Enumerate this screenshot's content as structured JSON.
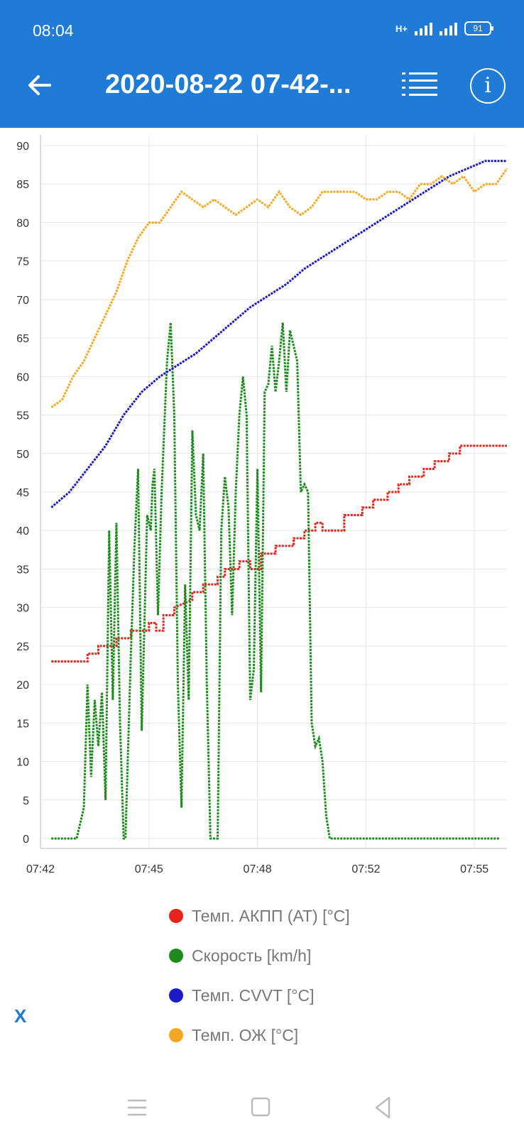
{
  "status": {
    "time": "08:04",
    "network": "H+",
    "battery": "91"
  },
  "appbar": {
    "title": "2020-08-22 07-42-..."
  },
  "chart_data": {
    "type": "line",
    "xlabel": "",
    "ylabel": "",
    "x_ticks": [
      "07:42",
      "07:45",
      "07:48",
      "07:52",
      "07:55"
    ],
    "x_tick_minutes": [
      0,
      3,
      6,
      9,
      12
    ],
    "xlim_minutes": [
      0,
      12.9
    ],
    "ylim": [
      0,
      90
    ],
    "y_ticks": [
      0,
      5,
      10,
      15,
      20,
      25,
      30,
      35,
      40,
      45,
      50,
      55,
      60,
      65,
      70,
      75,
      80,
      85,
      90
    ],
    "grid": true,
    "legend_position": "bottom",
    "series": [
      {
        "name": "Темп. АКПП (АТ) [°C]",
        "color": "#e8231c",
        "x": [
          0.3,
          1.3,
          1.3,
          1.6,
          1.6,
          2.1,
          2.1,
          2.5,
          2.5,
          3.0,
          3.0,
          3.2,
          3.2,
          3.4,
          3.4,
          3.7,
          3.7,
          4.2,
          4.2,
          4.5,
          4.5,
          4.9,
          4.9,
          5.1,
          5.1,
          5.5,
          5.5,
          5.8,
          5.8,
          6.1,
          6.1,
          6.5,
          6.5,
          7.0,
          7.0,
          7.3,
          7.3,
          7.6,
          7.6,
          7.8,
          7.8,
          8.4,
          8.4,
          8.9,
          8.9,
          9.2,
          9.2,
          9.6,
          9.6,
          9.9,
          9.9,
          10.2,
          10.2,
          10.6,
          10.6,
          10.9,
          10.9,
          11.3,
          11.3,
          11.6,
          11.6,
          12.9
        ],
        "values": [
          23,
          23,
          24,
          24,
          25,
          25,
          26,
          26,
          27,
          27,
          28,
          28,
          27,
          27,
          29,
          29,
          30,
          31,
          32,
          32,
          33,
          33,
          34,
          34,
          35,
          35,
          36,
          36,
          35,
          35,
          37,
          37,
          38,
          38,
          39,
          39,
          40,
          40,
          41,
          41,
          40,
          40,
          42,
          42,
          43,
          43,
          44,
          44,
          45,
          45,
          46,
          46,
          47,
          47,
          48,
          48,
          49,
          49,
          50,
          50,
          51,
          51
        ]
      },
      {
        "name": "Скорость [km/h]",
        "color": "#1e8a1e",
        "x": [
          0.3,
          1.0,
          1.1,
          1.2,
          1.3,
          1.4,
          1.5,
          1.6,
          1.7,
          1.8,
          1.9,
          2.0,
          2.1,
          2.2,
          2.3,
          2.35,
          2.5,
          2.6,
          2.7,
          2.8,
          2.95,
          3.05,
          3.1,
          3.15,
          3.25,
          3.35,
          3.5,
          3.6,
          3.7,
          3.8,
          3.9,
          4.0,
          4.1,
          4.2,
          4.3,
          4.4,
          4.5,
          4.6,
          4.7,
          4.8,
          4.9,
          5.0,
          5.1,
          5.2,
          5.3,
          5.4,
          5.5,
          5.6,
          5.7,
          5.8,
          5.9,
          6.0,
          6.1,
          6.2,
          6.3,
          6.4,
          6.5,
          6.6,
          6.7,
          6.8,
          6.9,
          7.0,
          7.1,
          7.2,
          7.3,
          7.4,
          7.5,
          7.6,
          7.7,
          7.8,
          7.9,
          8.0,
          8.1,
          8.2,
          8.3,
          8.4,
          8.5,
          8.6,
          8.7,
          8.8,
          8.9,
          9.0,
          9.1,
          9.2,
          9.3,
          9.4,
          9.5,
          9.6,
          9.7,
          9.8,
          9.9,
          10.0,
          10.1,
          10.2,
          10.3,
          10.4,
          10.5,
          10.6,
          10.7,
          10.8,
          10.9,
          11.0,
          11.1,
          11.2,
          11.3,
          11.4,
          11.5,
          11.6,
          11.7,
          11.8,
          11.9,
          12.0,
          12.1,
          12.2,
          12.3,
          12.4,
          12.5,
          12.6,
          12.7
        ],
        "values": [
          0,
          0,
          2,
          4,
          20,
          8,
          18,
          12,
          19,
          5,
          40,
          18,
          41,
          15,
          0,
          0,
          24,
          38,
          48,
          14,
          42,
          40,
          46,
          48,
          29,
          45,
          62,
          67,
          55,
          20,
          4,
          33,
          18,
          53,
          42,
          40,
          50,
          20,
          0,
          0,
          0,
          40,
          47,
          43,
          29,
          45,
          55,
          60,
          55,
          18,
          22,
          48,
          19,
          58,
          59,
          64,
          58,
          62,
          67,
          58,
          66,
          64,
          62,
          45,
          46,
          45,
          15,
          12,
          13,
          10,
          3,
          0,
          0,
          0,
          0,
          0,
          0,
          0,
          0,
          0,
          0,
          0,
          0,
          0,
          0,
          0,
          0,
          0,
          0,
          0,
          0,
          0,
          0,
          0,
          0,
          0,
          0,
          0,
          0,
          0,
          0,
          0,
          0,
          0,
          0,
          0,
          0,
          0,
          0,
          0,
          0,
          0,
          0,
          0,
          0,
          0,
          0,
          0,
          0
        ]
      },
      {
        "name": "Темп. CVVT [°C]",
        "color": "#1a1ac8",
        "x": [
          0.3,
          0.8,
          1.3,
          1.8,
          2.3,
          2.8,
          3.3,
          3.8,
          4.3,
          4.8,
          5.3,
          5.8,
          6.3,
          6.8,
          7.3,
          7.8,
          8.3,
          8.8,
          9.3,
          9.8,
          10.3,
          10.8,
          11.3,
          11.8,
          12.3,
          12.9
        ],
        "values": [
          43,
          45,
          48,
          51,
          55,
          58,
          60,
          61.5,
          63,
          65,
          67,
          69,
          70.5,
          72,
          74,
          75.5,
          77,
          78.5,
          80,
          81.5,
          83,
          84.5,
          86,
          87,
          88,
          88
        ]
      },
      {
        "name": "Темп. ОЖ [°C]",
        "color": "#f5a623",
        "x": [
          0.3,
          0.6,
          0.9,
          1.2,
          1.5,
          1.8,
          2.1,
          2.4,
          2.7,
          3.0,
          3.3,
          3.6,
          3.9,
          4.2,
          4.5,
          4.8,
          5.1,
          5.4,
          5.7,
          6.0,
          6.3,
          6.6,
          6.9,
          7.2,
          7.5,
          7.8,
          8.1,
          8.4,
          8.7,
          9.0,
          9.3,
          9.6,
          9.9,
          10.2,
          10.5,
          10.8,
          11.1,
          11.4,
          11.7,
          12.0,
          12.3,
          12.6,
          12.9
        ],
        "values": [
          56,
          57,
          60,
          62,
          65,
          68,
          71,
          75,
          78,
          80,
          80,
          82,
          84,
          83,
          82,
          83,
          82,
          81,
          82,
          83,
          82,
          84,
          82,
          81,
          82,
          84,
          84,
          84,
          84,
          83,
          83,
          84,
          84,
          83,
          85,
          85,
          86,
          85,
          86,
          84,
          85,
          85,
          87
        ]
      }
    ]
  },
  "legend": [
    {
      "label": "Темп. АКПП (АТ) [°C]",
      "color": "#e8231c"
    },
    {
      "label": "Скорость [km/h]",
      "color": "#1e8a1e"
    },
    {
      "label": "Темп. CVVT [°C]",
      "color": "#1a1ac8"
    },
    {
      "label": "Темп. ОЖ [°C]",
      "color": "#f5a623"
    }
  ],
  "x_button": "X",
  "icons": {
    "back": "arrow-left-icon",
    "list": "list-icon",
    "info": "info-icon"
  }
}
